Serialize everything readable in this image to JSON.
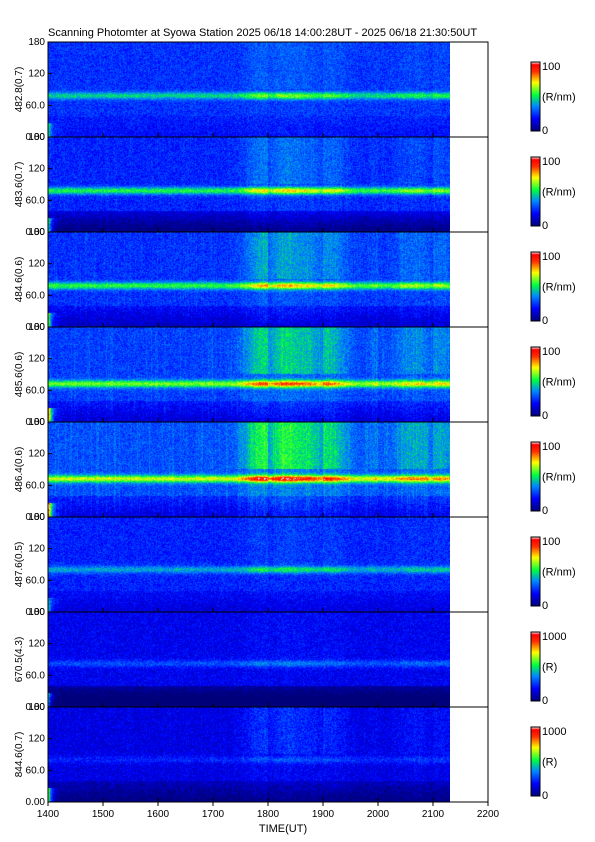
{
  "chart_data": {
    "type": "heatmap",
    "title": "Scanning Photomter at Syowa Station  2025 06/18 14:00:28UT - 2025 06/18 21:30:50UT",
    "xlabel": "TIME(UT)",
    "x_ticks": [
      "1400",
      "1500",
      "1600",
      "1700",
      "1800",
      "1900",
      "2000",
      "2100",
      "2200"
    ],
    "xlim": [
      1400,
      2200
    ],
    "data_end": 2130,
    "ylim": [
      0,
      180
    ],
    "y_ticks": [
      "0.00",
      "60.0",
      "120",
      "180"
    ],
    "panels": [
      {
        "label": "482.8(0.7)",
        "unit": "(R/nm)",
        "cmax": "100",
        "cmin": "0",
        "band_y": 78,
        "base": 0.24,
        "band_strength": 0.22,
        "event": 0.12,
        "lowcut": 0.02,
        "edge": 0.15
      },
      {
        "label": "483.6(0.7)",
        "unit": "(R/nm)",
        "cmax": "100",
        "cmin": "0",
        "band_y": 78,
        "base": 0.22,
        "band_strength": 0.3,
        "event": 0.22,
        "lowcut": 0.08,
        "edge": 0.25
      },
      {
        "label": "484.6(0.6)",
        "unit": "(R/nm)",
        "cmax": "100",
        "cmin": "0",
        "band_y": 78,
        "base": 0.24,
        "band_strength": 0.3,
        "event": 0.3,
        "lowcut": 0.05,
        "edge": 0.25
      },
      {
        "label": "485.6(0.6)",
        "unit": "(R/nm)",
        "cmax": "100",
        "cmin": "0",
        "band_y": 72,
        "base": 0.26,
        "band_strength": 0.34,
        "event": 0.4,
        "lowcut": 0.05,
        "edge": 0.35
      },
      {
        "label": "486.4(0.6)",
        "unit": "(R/nm)",
        "cmax": "100",
        "cmin": "0",
        "band_y": 72,
        "base": 0.28,
        "band_strength": 0.38,
        "event": 0.48,
        "lowcut": 0.05,
        "edge": 0.4
      },
      {
        "label": "487.6(0.5)",
        "unit": "(R/nm)",
        "cmax": "100",
        "cmin": "0",
        "band_y": 80,
        "base": 0.22,
        "band_strength": 0.18,
        "event": 0.08,
        "lowcut": 0.03,
        "edge": 0.15
      },
      {
        "label": "670.5(4.3)",
        "unit": "(R)",
        "cmax": "1000",
        "cmin": "0",
        "band_y": 82,
        "base": 0.16,
        "band_strength": 0.12,
        "event": 0.05,
        "lowcut": 0.1,
        "edge": 0.25
      },
      {
        "label": "844.6(0.7)",
        "unit": "(R)",
        "cmax": "1000",
        "cmin": "0",
        "band_y": 80,
        "base": 0.14,
        "band_strength": 0.08,
        "event": 0.2,
        "lowcut": 0.05,
        "edge": 0.3
      }
    ]
  }
}
